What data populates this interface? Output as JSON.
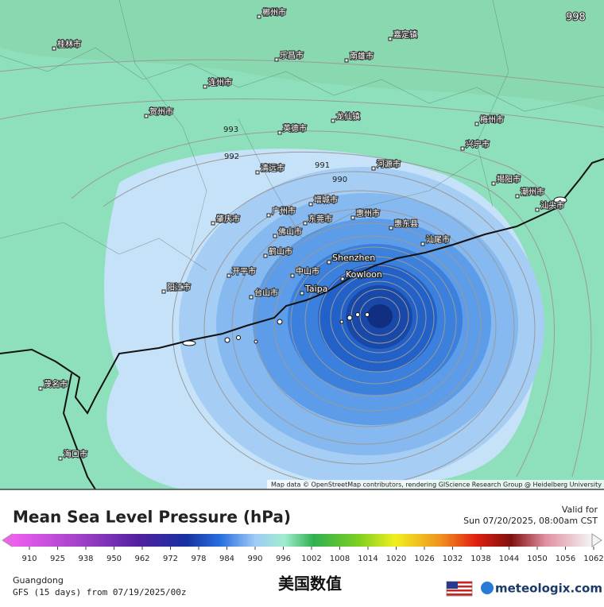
{
  "map": {
    "isobar_labels": [
      "998",
      "993",
      "992",
      "991",
      "990"
    ],
    "cities": [
      "郴州市",
      "桂林市",
      "乐昌市",
      "南雄市",
      "嘉定镇",
      "连州市",
      "贺州市",
      "龙仙镇",
      "梅州市",
      "英德市",
      "兴宁市",
      "清远市",
      "河源市",
      "广州市",
      "增城市",
      "惠州市",
      "佛山市",
      "东莞市",
      "惠东县",
      "汕尾市",
      "鹤山市",
      "肇庆市",
      "开平市",
      "中山市",
      "台山市",
      "阳江市",
      "揭阳市",
      "潮州市",
      "汕头市",
      "茂名市",
      "海口市",
      "Shenzhen",
      "Kowloon",
      "Taipa"
    ],
    "attribution": "Map data © OpenStreetMap contributors, rendering GIScience Research Group @ Heidelberg University"
  },
  "legend": {
    "title": "Mean Sea Level Pressure (hPa)",
    "valid_label": "Valid for",
    "valid_time": "Sun 07/20/2025, 08:00am CST",
    "ticks": [
      910,
      925,
      938,
      950,
      962,
      972,
      978,
      984,
      990,
      996,
      1002,
      1008,
      1014,
      1020,
      1026,
      1032,
      1038,
      1044,
      1050,
      1056,
      1062
    ],
    "region": "Guangdong",
    "model": "GFS (15 days) from 07/19/2025/00z"
  },
  "watermark": "美国数值",
  "brand": "meteologix.com"
}
